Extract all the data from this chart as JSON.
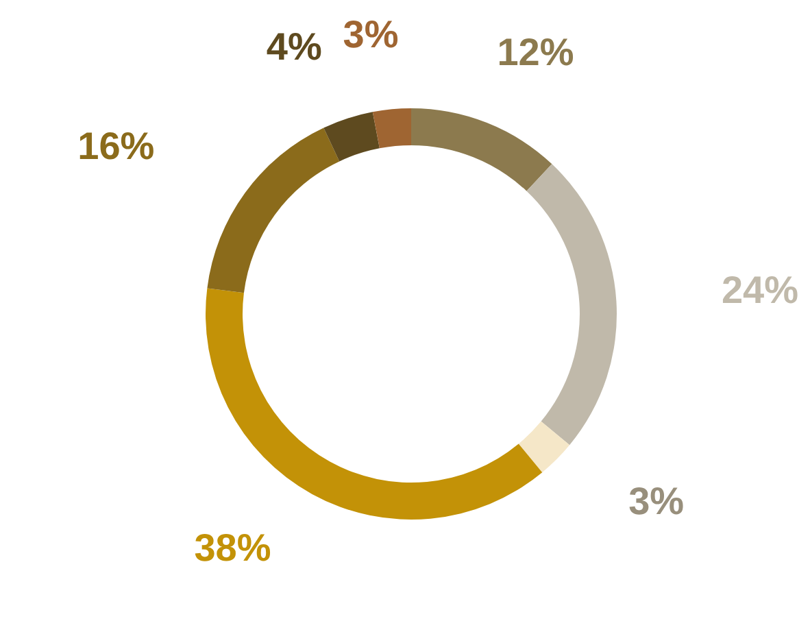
{
  "chart_data": {
    "type": "donut",
    "categories": [
      null,
      null,
      null,
      null,
      null,
      null,
      null
    ],
    "values": [
      12,
      24,
      3,
      38,
      16,
      4,
      3
    ],
    "colors": [
      "#8c7a4e",
      "#c0b9aa",
      "#f5e7c8",
      "#c39207",
      "#8b6b1b",
      "#5e4a1f",
      "#9f6532"
    ],
    "value_labels": [
      "12%",
      "24%",
      "3%",
      "38%",
      "16%",
      "4%",
      "3%"
    ],
    "legend": false
  }
}
